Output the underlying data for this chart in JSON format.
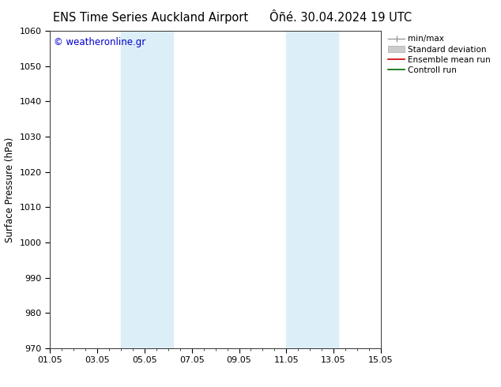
{
  "title_left": "ENS Time Series Auckland Airport",
  "title_right": "Ôñé. 30.04.2024 19 UTC",
  "ylabel": "Surface Pressure (hPa)",
  "ylim": [
    970,
    1060
  ],
  "yticks": [
    970,
    980,
    990,
    1000,
    1010,
    1020,
    1030,
    1040,
    1050,
    1060
  ],
  "xtick_labels": [
    "01.05",
    "03.05",
    "05.05",
    "07.05",
    "09.05",
    "11.05",
    "13.05",
    "15.05"
  ],
  "xtick_positions": [
    0,
    2,
    4,
    6,
    8,
    10,
    12,
    14
  ],
  "shaded_regions": [
    {
      "x_start": 3.0,
      "x_end": 5.2,
      "color": "#dceef8"
    },
    {
      "x_start": 10.0,
      "x_end": 12.2,
      "color": "#dceef8"
    }
  ],
  "watermark_text": "© weatheronline.gr",
  "watermark_color": "#0000cc",
  "background_color": "#ffffff",
  "axes_bg_color": "#ffffff",
  "title_fontsize": 10.5,
  "label_fontsize": 8.5,
  "tick_fontsize": 8,
  "legend_fontsize": 7.5
}
